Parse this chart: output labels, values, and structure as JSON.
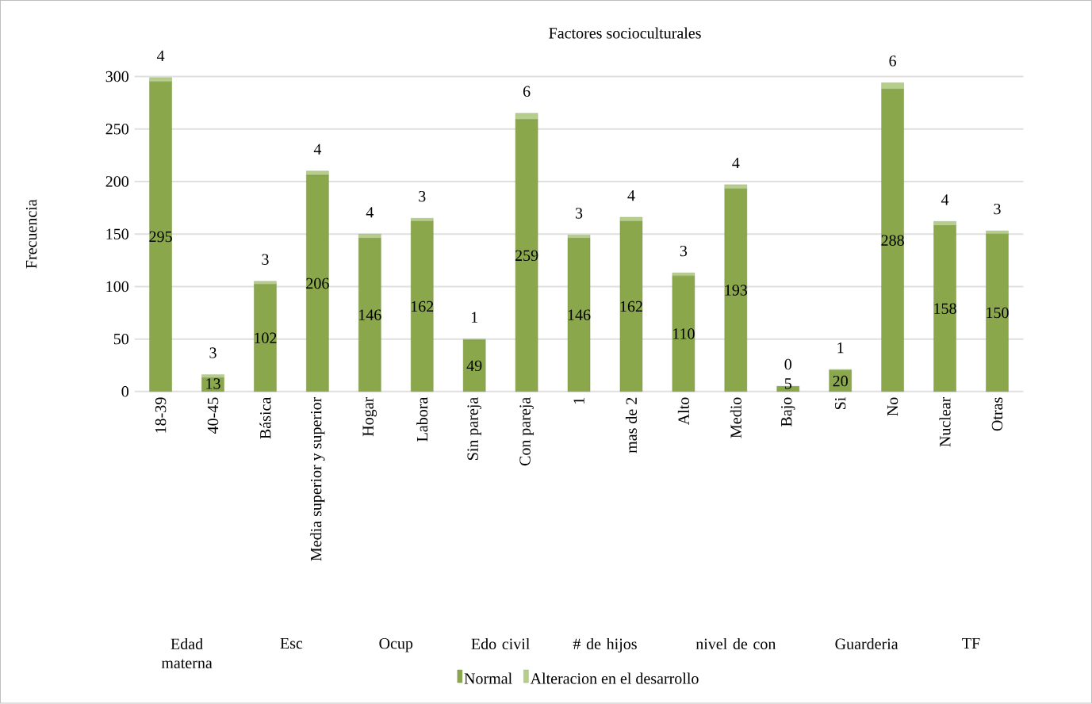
{
  "chart_data": {
    "type": "bar",
    "stacked": true,
    "title": "Factores socioculturales",
    "ylabel": "Frecuencia",
    "categories": [
      "18-39",
      "40-45",
      "Básica",
      "Media superior y superior",
      "Hogar",
      "Labora",
      "Sin pareja",
      "Con pareja",
      "1",
      "mas de 2",
      "Alto",
      "Medio",
      "Bajo",
      "Si",
      "No",
      "Nuclear",
      "Otras"
    ],
    "series": [
      {
        "name": "Normal",
        "color": "#8aa84b",
        "values": [
          295,
          13,
          102,
          206,
          146,
          162,
          49,
          259,
          146,
          162,
          110,
          193,
          5,
          20,
          288,
          158,
          150
        ]
      },
      {
        "name": "Alteracion en el desarrollo",
        "color": "#b5cf8a",
        "values": [
          4,
          3,
          3,
          4,
          4,
          3,
          1,
          6,
          3,
          4,
          3,
          4,
          0,
          1,
          6,
          4,
          3
        ]
      }
    ],
    "ylim": [
      0,
      300
    ],
    "yticks": [
      0,
      50,
      100,
      150,
      200,
      250,
      300
    ],
    "grid": "y",
    "legend": "bottom",
    "data_labels": true,
    "annotations": [
      "Edad materna",
      "Esc",
      "Ocup",
      "Edo civil",
      "# de hijos",
      "nivel de con",
      "Guarderia",
      "TF"
    ]
  }
}
